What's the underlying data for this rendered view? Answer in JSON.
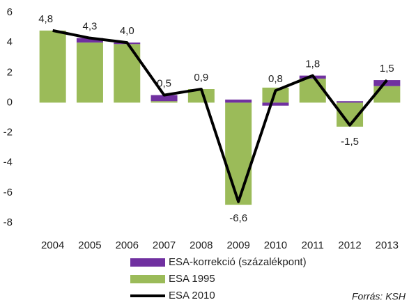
{
  "chart_data": {
    "type": "bar",
    "categories": [
      "2004",
      "2005",
      "2006",
      "2007",
      "2008",
      "2009",
      "2010",
      "2011",
      "2012",
      "2013"
    ],
    "series": [
      {
        "name": "ESA 1995",
        "color": "#9bbb59",
        "values": [
          4.8,
          4.0,
          3.9,
          0.1,
          0.9,
          -6.8,
          1.0,
          1.6,
          -1.6,
          1.1
        ]
      },
      {
        "name": "ESA-korrekció (százalékpont)",
        "color": "#7030a0",
        "values": [
          0.0,
          0.3,
          0.1,
          0.4,
          0.0,
          0.2,
          -0.2,
          0.2,
          0.1,
          0.4
        ]
      },
      {
        "name": "ESA 2010",
        "color": "#000000",
        "type": "line",
        "values": [
          4.8,
          4.3,
          4.0,
          0.5,
          0.9,
          -6.6,
          0.8,
          1.8,
          -1.5,
          1.5
        ],
        "value_labels": [
          "4,8",
          "4,3",
          "4,0",
          "0,5",
          "0,9",
          "-6,6",
          "0,8",
          "1,8",
          "-1,5",
          "1,5"
        ]
      }
    ],
    "ylim": [
      -8,
      6
    ],
    "yticks": [
      -8,
      -6,
      -4,
      -2,
      0,
      2,
      4,
      6
    ],
    "stacked": true,
    "grid": false,
    "source": "Forrás: KSH"
  }
}
